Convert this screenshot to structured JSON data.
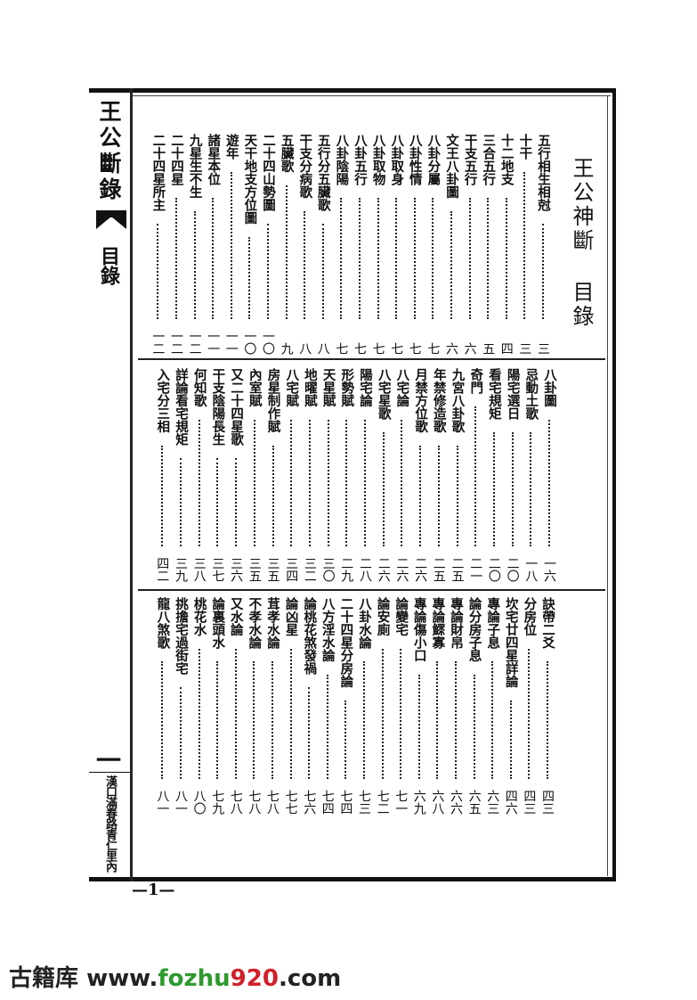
{
  "margin": {
    "book_title": "王公斷錄",
    "volume": "一",
    "section": "目錄",
    "leaf": "一",
    "publisher_address": "漢口滿春路青仁里內"
  },
  "title": "王公神斷 目錄",
  "registers": [
    {
      "entries": [
        {
          "title": "五行相生相尅",
          "page": "三"
        },
        {
          "title": "十干",
          "page": "三"
        },
        {
          "title": "十二地支",
          "page": "四"
        },
        {
          "title": "三合五行",
          "page": "五"
        },
        {
          "title": "干支五行",
          "page": "六"
        },
        {
          "title": "文王八卦圖",
          "page": "六"
        },
        {
          "title": "八卦分屬",
          "page": "七"
        },
        {
          "title": "八卦性情",
          "page": "七"
        },
        {
          "title": "八卦取身",
          "page": "七"
        },
        {
          "title": "八卦取物",
          "page": "七"
        },
        {
          "title": "八卦五行",
          "page": "七"
        },
        {
          "title": "八卦陰陽",
          "page": "七"
        },
        {
          "title": "五行分五臟歌",
          "page": "八"
        },
        {
          "title": "干支分病歌",
          "page": "八"
        },
        {
          "title": "五臟歌",
          "page": "九"
        },
        {
          "title": "二十四山勢圖",
          "page": "一〇"
        },
        {
          "title": "天干地支方位圖",
          "page": "一〇"
        },
        {
          "title": "遊年",
          "page": "一一"
        },
        {
          "title": "諸星本位",
          "page": "一一"
        },
        {
          "title": "九星生不生",
          "page": "一二"
        },
        {
          "title": "二十四星",
          "page": "一二"
        },
        {
          "title": "二十四星所主",
          "page": "一二"
        }
      ]
    },
    {
      "entries": [
        {
          "title": "八卦圖",
          "page": "一六"
        },
        {
          "title": "忌動土歌",
          "page": "一八"
        },
        {
          "title": "陽宅選日",
          "page": "二〇"
        },
        {
          "title": "看宅規矩",
          "page": "二〇"
        },
        {
          "title": "奇門",
          "page": "二一"
        },
        {
          "title": "九宮八卦歌",
          "page": "二五"
        },
        {
          "title": "年禁修造歌",
          "page": "二五"
        },
        {
          "title": "月禁方位歌",
          "page": "二六"
        },
        {
          "title": "八宅論",
          "page": "二六"
        },
        {
          "title": "八宅星歌",
          "page": "二六"
        },
        {
          "title": "陽宅論",
          "page": "二八"
        },
        {
          "title": "形勢賦",
          "page": "二九"
        },
        {
          "title": "天星賦",
          "page": "三〇"
        },
        {
          "title": "地曜賦",
          "page": "三二"
        },
        {
          "title": "八宅賦",
          "page": "三四"
        },
        {
          "title": "房星制作賦",
          "page": "三五"
        },
        {
          "title": "內室賦",
          "page": "三五"
        },
        {
          "title": "又二十四星歌",
          "page": "三六"
        },
        {
          "title": "干支陰陽長生",
          "page": "三七"
        },
        {
          "title": "何知歌",
          "page": "三八"
        },
        {
          "title": "詳論看宅規矩",
          "page": "三九"
        },
        {
          "title": "入宅分三相",
          "page": "四二"
        }
      ]
    },
    {
      "entries": [
        {
          "title": "訣帶二爻",
          "page": "四三"
        },
        {
          "title": "分房位",
          "page": "四三"
        },
        {
          "title": "坎宅廿四星詳論",
          "page": "四六"
        },
        {
          "title": "專論子息",
          "page": "六三"
        },
        {
          "title": "論分房子息",
          "page": "六五"
        },
        {
          "title": "專論財帛",
          "page": "六六"
        },
        {
          "title": "專論鰥寡",
          "page": "六八"
        },
        {
          "title": "專論傷小口",
          "page": "六九"
        },
        {
          "title": "論變宅",
          "page": "七一"
        },
        {
          "title": "論安廁",
          "page": "七二"
        },
        {
          "title": "八卦水論",
          "page": "七三"
        },
        {
          "title": "二十四星分房論",
          "page": "七四"
        },
        {
          "title": "八方淫水論",
          "page": "七四"
        },
        {
          "title": "論桃花煞發禍",
          "page": "七六"
        },
        {
          "title": "論凶星",
          "page": "七七"
        },
        {
          "title": "茸孝水論",
          "page": "七八"
        },
        {
          "title": "不孝水論",
          "page": "七八"
        },
        {
          "title": "又水論",
          "page": "七八"
        },
        {
          "title": "論裏頭水",
          "page": "七九"
        },
        {
          "title": "桃花水",
          "page": "八〇"
        },
        {
          "title": "挑擔宅過街宅",
          "page": "八一"
        },
        {
          "title": "龍八煞歌",
          "page": "八一"
        }
      ]
    }
  ],
  "page_number": "—1—",
  "watermark": {
    "cn": "古籍库 ",
    "prefix": "www.",
    "mid": "fozhu",
    "num": "920",
    "suffix": ".com",
    "colors": {
      "text": "#222222",
      "mid": "#2e9a2e",
      "num": "#d0202a"
    }
  }
}
